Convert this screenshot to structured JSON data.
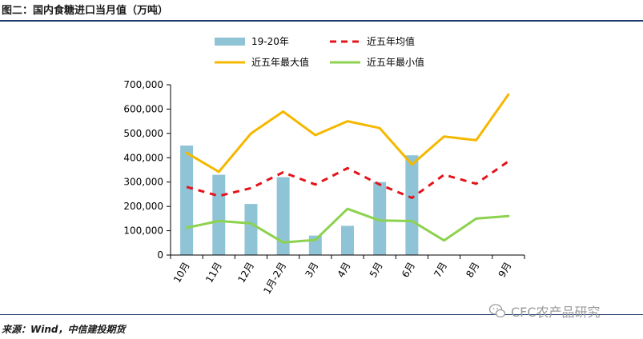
{
  "figure_title": "图二：国内食糖进口当月值（万吨）",
  "source": "来源：Wind，中信建投期货",
  "watermark": "CFC农产品研究",
  "chart_data": {
    "type": "bar+line",
    "title": "",
    "xlabel": "",
    "ylabel": "",
    "categories": [
      "10月",
      "11月",
      "12月",
      "1月-2月",
      "3月",
      "4月",
      "5月",
      "6月",
      "7月",
      "8月",
      "9月"
    ],
    "ylim": [
      0,
      700000
    ],
    "yticks": [
      0,
      100000,
      200000,
      300000,
      400000,
      500000,
      600000,
      700000
    ],
    "ytick_labels": [
      "0",
      "100,000",
      "200,000",
      "300,000",
      "400,000",
      "500,000",
      "600,000",
      "700,000"
    ],
    "grid": false,
    "legend_position": "top",
    "series": [
      {
        "name": "19-20年",
        "kind": "bar",
        "color": "#8fc3d6",
        "values": [
          450000,
          330000,
          210000,
          320000,
          80000,
          120000,
          300000,
          410000,
          null,
          null,
          null
        ]
      },
      {
        "name": "近五年均值",
        "kind": "line",
        "style": "dashed",
        "color": "#e5141b",
        "values": [
          280000,
          243000,
          275000,
          340000,
          290000,
          357000,
          290000,
          235000,
          330000,
          293000,
          385000
        ]
      },
      {
        "name": "近五年最大值",
        "kind": "line",
        "style": "solid",
        "color": "#f5b800",
        "values": [
          420000,
          342000,
          500000,
          590000,
          493000,
          550000,
          522000,
          372000,
          487000,
          472000,
          660000
        ]
      },
      {
        "name": "近五年最小值",
        "kind": "line",
        "style": "solid",
        "color": "#8cd24f",
        "values": [
          112000,
          140000,
          130000,
          52000,
          62000,
          190000,
          142000,
          140000,
          60000,
          150000,
          160000
        ]
      }
    ]
  }
}
